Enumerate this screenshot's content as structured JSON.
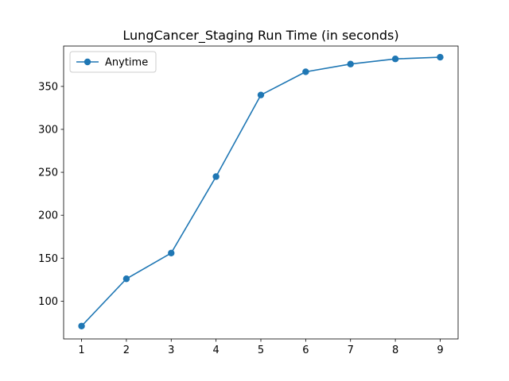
{
  "chart_data": {
    "type": "line",
    "title": "LungCancer_Staging Run Time (in seconds)",
    "xlabel": "",
    "ylabel": "",
    "x": [
      1,
      2,
      3,
      4,
      5,
      6,
      7,
      8,
      9
    ],
    "xlim": [
      0.6,
      9.4
    ],
    "ylim": [
      56,
      397
    ],
    "xticks": [
      1,
      2,
      3,
      4,
      5,
      6,
      7,
      8,
      9
    ],
    "yticks": [
      100,
      150,
      200,
      250,
      300,
      350
    ],
    "grid": false,
    "legend_position": "upper-left",
    "series": [
      {
        "name": "Anytime",
        "color": "#1f77b4",
        "marker": "circle",
        "values": [
          71,
          126,
          156,
          245,
          340,
          367,
          376,
          382,
          384
        ]
      }
    ]
  }
}
